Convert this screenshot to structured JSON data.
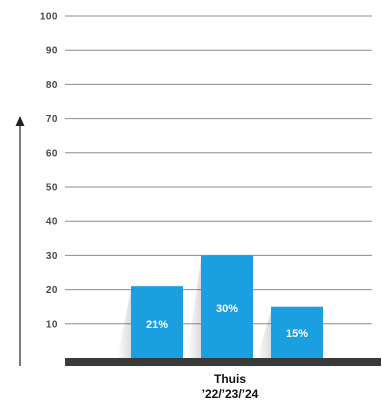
{
  "chart_data": {
    "type": "bar",
    "categories": [
      "'22",
      "'23",
      "'24"
    ],
    "values": [
      21,
      30,
      15
    ],
    "data_labels": [
      "21%",
      "30%",
      "15%"
    ],
    "yticks": [
      10,
      20,
      30,
      40,
      50,
      60,
      70,
      80,
      90,
      100
    ],
    "ylim": [
      0,
      100
    ],
    "group_label": "Thuis",
    "group_sublabel": "’22/’23/’24",
    "grid": true,
    "colors": {
      "bar": "#1a9fe0",
      "grid": "#8c8c8c",
      "baseline": "#3a3a3a",
      "axis": "#222222"
    }
  }
}
